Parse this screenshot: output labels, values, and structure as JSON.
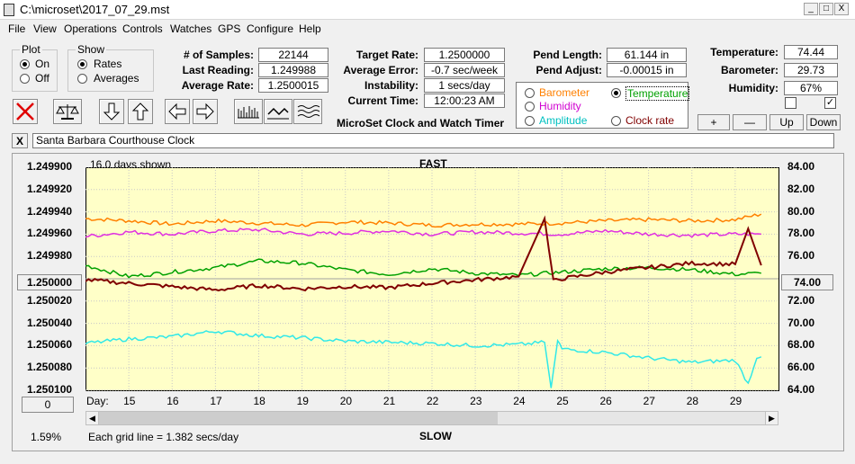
{
  "window": {
    "title": "C:\\microset\\2017_07_29.mst",
    "min": "_",
    "max": "□",
    "close": "X"
  },
  "menu": [
    "File",
    "View",
    "Operations",
    "Controls",
    "Watches",
    "GPS",
    "Configure",
    "Help"
  ],
  "plot_group": {
    "title": "Plot",
    "options": [
      "On",
      "Off"
    ],
    "selected": "On"
  },
  "show_group": {
    "title": "Show",
    "options": [
      "Rates",
      "Averages"
    ],
    "selected": "Rates"
  },
  "stats": {
    "samples_label": "# of Samples:",
    "samples": "22144",
    "last_label": "Last Reading:",
    "last": "1.249988",
    "avg_label": "Average Rate:",
    "avg": "1.2500015"
  },
  "target": {
    "target_label": "Target Rate:",
    "target": "1.2500000",
    "avgerr_label": "Average Error:",
    "avgerr": "-0.7 sec/week",
    "instab_label": "Instability:",
    "instab": "1 secs/day",
    "time_label": "Current Time:",
    "time": "12:00:23 AM",
    "app_title": "MicroSet Clock and Watch Timer"
  },
  "pend": {
    "length_label": "Pend Length:",
    "length": "61.144 in",
    "adjust_label": "Pend Adjust:",
    "adjust": "-0.00015 in"
  },
  "series_select": {
    "options": [
      {
        "label": "Barometer",
        "color": "#ff8000",
        "on": false
      },
      {
        "label": "Temperature",
        "color": "#00a000",
        "on": true
      },
      {
        "label": "Humidity",
        "color": "#d000d0",
        "on": false
      },
      {
        "label": "Clock rate",
        "color": "#800000",
        "on": false
      },
      {
        "label": "Amplitude",
        "color": "#00c0c0",
        "on": false
      }
    ]
  },
  "env": {
    "temp_label": "Temperature:",
    "temp": "74.44",
    "baro_label": "Barometer:",
    "baro": "29.73",
    "hum_label": "Humidity:",
    "hum": "67%",
    "check1": "",
    "check2": "✓",
    "plus": "+",
    "minus": "—",
    "up": "Up",
    "down": "Down"
  },
  "clock_name": {
    "close": "X",
    "value": "Santa Barbara Courthouse Clock"
  },
  "chart_header": {
    "days_shown": "16.0 days shown",
    "fast": "FAST",
    "slow": "SLOW",
    "grid": "Each grid line = 1.382 secs/day",
    "percent": "1.59%"
  },
  "side_buttons": {
    "left": "1.250000",
    "right": "74.00",
    "zero": "0"
  },
  "chart_data": {
    "type": "line",
    "x_label": "Day:",
    "x_ticks": [
      "15",
      "16",
      "17",
      "18",
      "19",
      "20",
      "21",
      "22",
      "23",
      "24",
      "25",
      "26",
      "27",
      "28",
      "29"
    ],
    "x_range": [
      14.0,
      30.0
    ],
    "y_left_ticks": [
      "1.249900",
      "1.249920",
      "1.249940",
      "1.249960",
      "1.249980",
      "1.250000",
      "1.250020",
      "1.250040",
      "1.250060",
      "1.250080",
      "1.250100"
    ],
    "y_left_range": [
      1.2501,
      1.2499
    ],
    "y_right_ticks": [
      "84.00",
      "82.00",
      "80.00",
      "78.00",
      "76.00",
      "74.00",
      "72.00",
      "70.00",
      "68.00",
      "66.00",
      "64.00"
    ],
    "y_right_range": [
      64,
      84
    ],
    "grid": true,
    "series": [
      {
        "name": "Barometer",
        "color": "#ff8000",
        "axis": "right",
        "x": [
          14,
          15,
          16,
          17,
          18,
          19,
          20,
          21,
          22,
          23,
          24,
          25,
          26,
          27,
          28,
          29,
          29.6
        ],
        "y": [
          79.4,
          79.2,
          78.9,
          79.2,
          79.0,
          78.8,
          79.1,
          79.0,
          78.8,
          78.9,
          78.9,
          79.0,
          79.2,
          79.3,
          79.2,
          79.3,
          79.8
        ]
      },
      {
        "name": "Humidity",
        "color": "#e030e0",
        "axis": "right",
        "x": [
          14,
          15,
          16,
          17,
          18,
          19,
          20,
          21,
          22,
          23,
          24,
          25,
          26,
          27,
          28,
          29,
          29.6
        ],
        "y": [
          77.8,
          78.2,
          78.0,
          78.3,
          78.4,
          78.0,
          78.1,
          78.3,
          78.0,
          78.2,
          78.1,
          78.0,
          78.3,
          78.0,
          77.9,
          78.0,
          78.0
        ]
      },
      {
        "name": "Temperature",
        "color": "#00a000",
        "axis": "right",
        "x": [
          14,
          15,
          16,
          17,
          18,
          19,
          20,
          21,
          22,
          23,
          24,
          25,
          26,
          27,
          28,
          29,
          29.6
        ],
        "y": [
          75.2,
          74.2,
          74.6,
          75.0,
          75.6,
          75.4,
          74.8,
          74.4,
          74.9,
          74.5,
          74.3,
          74.6,
          74.9,
          75.0,
          74.8,
          74.4,
          74.5
        ]
      },
      {
        "name": "Clock rate",
        "color": "#800000",
        "axis": "right",
        "x": [
          14,
          15,
          16,
          17,
          18,
          19,
          20,
          21,
          22,
          23,
          24,
          24.6,
          24.8,
          25,
          26,
          27,
          28,
          29,
          29.3,
          29.6
        ],
        "y": [
          73.9,
          73.6,
          73.3,
          73.0,
          73.4,
          73.1,
          73.3,
          73.2,
          73.6,
          73.9,
          74.2,
          79.4,
          73.8,
          74.0,
          74.6,
          75.0,
          75.4,
          75.3,
          78.5,
          75.2
        ]
      },
      {
        "name": "Amplitude",
        "color": "#30e8e8",
        "axis": "right",
        "x": [
          14,
          15,
          16,
          17,
          18,
          19,
          20,
          21,
          22,
          23,
          24,
          24.6,
          24.75,
          24.9,
          25,
          26,
          27,
          28,
          29,
          29.3,
          29.5,
          29.6
        ],
        "y": [
          68.2,
          68.6,
          68.8,
          69.3,
          68.9,
          68.7,
          68.4,
          68.3,
          68.2,
          68.0,
          68.1,
          68.3,
          64.2,
          68.5,
          67.7,
          67.4,
          66.9,
          66.5,
          66.7,
          64.6,
          67.0,
          67.0
        ]
      }
    ]
  }
}
